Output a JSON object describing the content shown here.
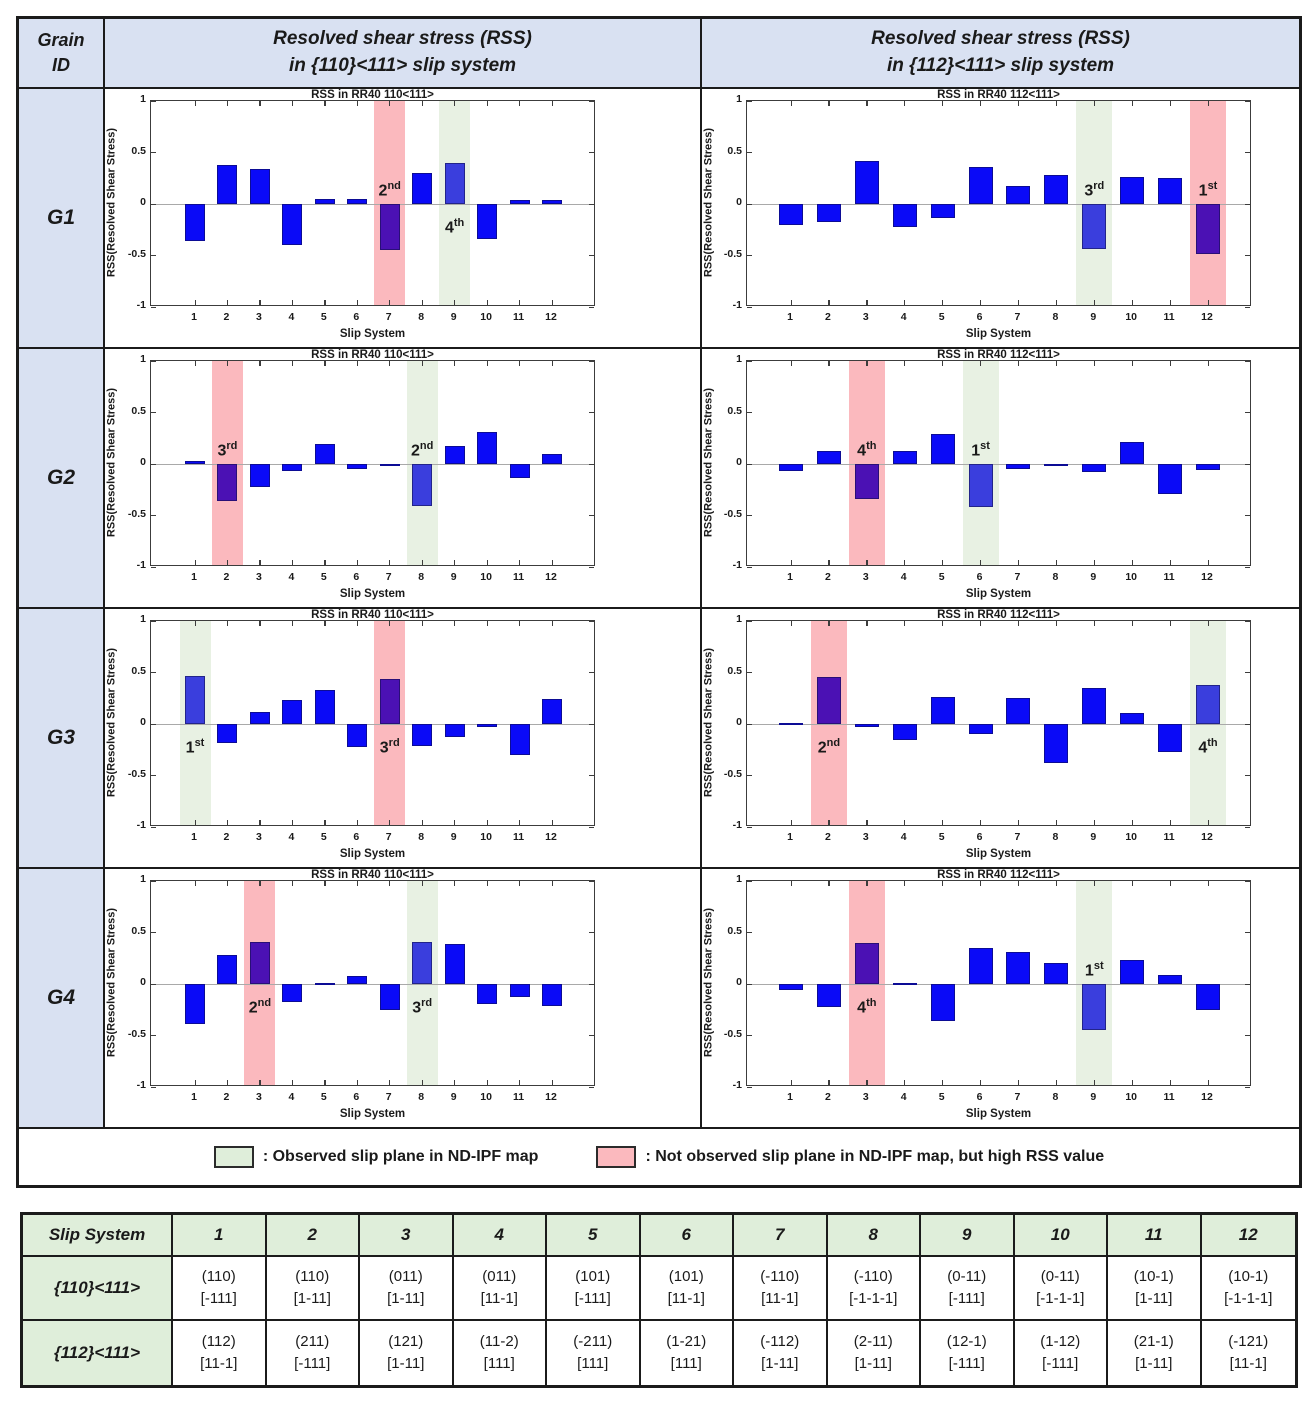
{
  "header": {
    "grain_line1": "Grain",
    "grain_line2": "ID",
    "col110_line1": "Resolved shear stress (RSS)",
    "col110_line2": "in {110}<111>  slip system",
    "col112_line1": "Resolved shear stress (RSS)",
    "col112_line2": "in {112}<111>  slip system"
  },
  "grains": [
    "G1",
    "G2",
    "G3",
    "G4"
  ],
  "legend": {
    "observed": ": Observed slip plane in ND-IPF map",
    "not_observed": ": Not observed slip plane in ND-IPF map, but high RSS value"
  },
  "colors": {
    "bar": "#0a0af7",
    "bar_red_highlight": "#4b11b4",
    "bar_green_highlight": "#3a3edd",
    "band_red": "#fbb9be",
    "band_green": "#e8f1e3",
    "header_bg": "#d9e1f2",
    "table_green_bg": "#dfeeda",
    "swatch_green": "#dfeeda",
    "swatch_pink": "#fbb9be"
  },
  "chart_data": [
    {
      "grain": "G1",
      "slip_family": "{110}<111>",
      "type": "bar",
      "title": "RSS in RR40 110<111>",
      "xlabel": "Slip System",
      "ylabel": "RSS(Resolved Shear Stress)",
      "ylim": [
        -1,
        1
      ],
      "yticks": [
        1,
        0.5,
        0,
        -0.5,
        -1
      ],
      "categories": [
        1,
        2,
        3,
        4,
        5,
        6,
        7,
        8,
        9,
        10,
        11,
        12
      ],
      "values": [
        -0.36,
        0.38,
        0.34,
        -0.4,
        0.05,
        0.05,
        -0.45,
        0.3,
        0.4,
        -0.34,
        0.04,
        0.04
      ],
      "highlights": [
        {
          "system": 7,
          "band": "red",
          "rank": "2",
          "sup": "nd"
        },
        {
          "system": 9,
          "band": "green",
          "rank": "4",
          "sup": "th"
        }
      ]
    },
    {
      "grain": "G1",
      "slip_family": "{112}<111>",
      "type": "bar",
      "title": "RSS in RR40 112<111>",
      "xlabel": "Slip System",
      "ylabel": "RSS(Resolved Shear Stress)",
      "ylim": [
        -1,
        1
      ],
      "yticks": [
        1,
        0.5,
        0,
        -0.5,
        -1
      ],
      "categories": [
        1,
        2,
        3,
        4,
        5,
        6,
        7,
        8,
        9,
        10,
        11,
        12
      ],
      "values": [
        -0.2,
        -0.17,
        0.42,
        -0.22,
        -0.14,
        0.36,
        0.17,
        0.28,
        -0.44,
        0.26,
        0.25,
        -0.49
      ],
      "highlights": [
        {
          "system": 9,
          "band": "green",
          "rank": "3",
          "sup": "rd"
        },
        {
          "system": 12,
          "band": "red",
          "rank": "1",
          "sup": "st"
        }
      ]
    },
    {
      "grain": "G2",
      "slip_family": "{110}<111>",
      "type": "bar",
      "title": "RSS in RR40 110<111>",
      "xlabel": "Slip System",
      "ylabel": "RSS(Resolved Shear Stress)",
      "ylim": [
        -1,
        1
      ],
      "yticks": [
        1,
        0.5,
        0,
        -0.5,
        -1
      ],
      "categories": [
        1,
        2,
        3,
        4,
        5,
        6,
        7,
        8,
        9,
        10,
        11,
        12
      ],
      "values": [
        0.03,
        -0.36,
        -0.22,
        -0.07,
        0.19,
        -0.05,
        -0.02,
        -0.41,
        0.17,
        0.31,
        -0.14,
        0.1
      ],
      "highlights": [
        {
          "system": 2,
          "band": "red",
          "rank": "3",
          "sup": "rd"
        },
        {
          "system": 8,
          "band": "green",
          "rank": "2",
          "sup": "nd"
        }
      ]
    },
    {
      "grain": "G2",
      "slip_family": "{112}<111>",
      "type": "bar",
      "title": "RSS in RR40 112<111>",
      "xlabel": "Slip System",
      "ylabel": "RSS(Resolved Shear Stress)",
      "ylim": [
        -1,
        1
      ],
      "yticks": [
        1,
        0.5,
        0,
        -0.5,
        -1
      ],
      "categories": [
        1,
        2,
        3,
        4,
        5,
        6,
        7,
        8,
        9,
        10,
        11,
        12
      ],
      "values": [
        -0.07,
        0.13,
        -0.34,
        0.13,
        0.29,
        -0.42,
        -0.05,
        -0.02,
        -0.08,
        0.21,
        -0.29,
        -0.06
      ],
      "highlights": [
        {
          "system": 3,
          "band": "red",
          "rank": "4",
          "sup": "th"
        },
        {
          "system": 6,
          "band": "green",
          "rank": "1",
          "sup": "st"
        }
      ]
    },
    {
      "grain": "G3",
      "slip_family": "{110}<111>",
      "type": "bar",
      "title": "RSS in RR40 110<111>",
      "xlabel": "Slip System",
      "ylabel": "RSS(Resolved Shear Stress)",
      "ylim": [
        -1,
        1
      ],
      "yticks": [
        1,
        0.5,
        0,
        -0.5,
        -1
      ],
      "categories": [
        1,
        2,
        3,
        4,
        5,
        6,
        7,
        8,
        9,
        10,
        11,
        12
      ],
      "values": [
        0.47,
        -0.18,
        0.12,
        0.23,
        0.33,
        -0.22,
        0.44,
        -0.21,
        -0.13,
        -0.03,
        -0.3,
        0.24
      ],
      "highlights": [
        {
          "system": 1,
          "band": "green",
          "rank": "1",
          "sup": "st"
        },
        {
          "system": 7,
          "band": "red",
          "rank": "3",
          "sup": "rd"
        }
      ]
    },
    {
      "grain": "G3",
      "slip_family": "{112}<111>",
      "type": "bar",
      "title": "RSS in RR40 112<111>",
      "xlabel": "Slip System",
      "ylabel": "RSS(Resolved Shear Stress)",
      "ylim": [
        -1,
        1
      ],
      "yticks": [
        1,
        0.5,
        0,
        -0.5,
        -1
      ],
      "categories": [
        1,
        2,
        3,
        4,
        5,
        6,
        7,
        8,
        9,
        10,
        11,
        12
      ],
      "values": [
        0.01,
        0.46,
        -0.03,
        -0.16,
        0.26,
        -0.1,
        0.25,
        -0.38,
        0.35,
        0.11,
        -0.27,
        0.38
      ],
      "highlights": [
        {
          "system": 2,
          "band": "red",
          "rank": "2",
          "sup": "nd"
        },
        {
          "system": 12,
          "band": "green",
          "rank": "4",
          "sup": "th"
        }
      ]
    },
    {
      "grain": "G4",
      "slip_family": "{110}<111>",
      "type": "bar",
      "title": "RSS in RR40 110<111>",
      "xlabel": "Slip System",
      "ylabel": "RSS(Resolved Shear Stress)",
      "ylim": [
        -1,
        1
      ],
      "yticks": [
        1,
        0.5,
        0,
        -0.5,
        -1
      ],
      "categories": [
        1,
        2,
        3,
        4,
        5,
        6,
        7,
        8,
        9,
        10,
        11,
        12
      ],
      "values": [
        -0.39,
        0.28,
        0.41,
        -0.17,
        0.01,
        0.08,
        -0.25,
        0.41,
        0.39,
        -0.19,
        -0.13,
        -0.21
      ],
      "highlights": [
        {
          "system": 3,
          "band": "red",
          "rank": "2",
          "sup": "nd"
        },
        {
          "system": 8,
          "band": "green",
          "rank": "3",
          "sup": "rd"
        }
      ]
    },
    {
      "grain": "G4",
      "slip_family": "{112}<111>",
      "type": "bar",
      "title": "RSS in RR40 112<111>",
      "xlabel": "Slip System",
      "ylabel": "RSS(Resolved Shear Stress)",
      "ylim": [
        -1,
        1
      ],
      "yticks": [
        1,
        0.5,
        0,
        -0.5,
        -1
      ],
      "categories": [
        1,
        2,
        3,
        4,
        5,
        6,
        7,
        8,
        9,
        10,
        11,
        12
      ],
      "values": [
        -0.06,
        -0.22,
        0.4,
        0.01,
        -0.36,
        0.35,
        0.31,
        0.2,
        -0.45,
        0.23,
        0.09,
        -0.25
      ],
      "highlights": [
        {
          "system": 3,
          "band": "red",
          "rank": "4",
          "sup": "th"
        },
        {
          "system": 9,
          "band": "green",
          "rank": "1",
          "sup": "st"
        }
      ]
    }
  ],
  "slip_table": {
    "header": [
      "Slip System",
      "1",
      "2",
      "3",
      "4",
      "5",
      "6",
      "7",
      "8",
      "9",
      "10",
      "11",
      "12"
    ],
    "rows": [
      {
        "label": "{110}<111>",
        "cells": [
          [
            "(110)",
            "[-111]"
          ],
          [
            "(110)",
            "[1-11]"
          ],
          [
            "(011)",
            "[1-11]"
          ],
          [
            "(011)",
            "[11-1]"
          ],
          [
            "(101)",
            "[-111]"
          ],
          [
            "(101)",
            "[11-1]"
          ],
          [
            "(-110)",
            "[11-1]"
          ],
          [
            "(-110)",
            "[-1-1-1]"
          ],
          [
            "(0-11)",
            "[-111]"
          ],
          [
            "(0-11)",
            "[-1-1-1]"
          ],
          [
            "(10-1)",
            "[1-11]"
          ],
          [
            "(10-1)",
            "[-1-1-1]"
          ]
        ]
      },
      {
        "label": "{112}<111>",
        "cells": [
          [
            "(112)",
            "[11-1]"
          ],
          [
            "(211)",
            "[-111]"
          ],
          [
            "(121)",
            "[1-11]"
          ],
          [
            "(11-2)",
            "[111]"
          ],
          [
            "(-211)",
            "[111]"
          ],
          [
            "(1-21)",
            "[111]"
          ],
          [
            "(-112)",
            "[1-11]"
          ],
          [
            "(2-11)",
            "[1-11]"
          ],
          [
            "(12-1)",
            "[-111]"
          ],
          [
            "(1-12)",
            "[-111]"
          ],
          [
            "(21-1)",
            "[1-11]"
          ],
          [
            "(-121)",
            "[11-1]"
          ]
        ]
      }
    ]
  }
}
